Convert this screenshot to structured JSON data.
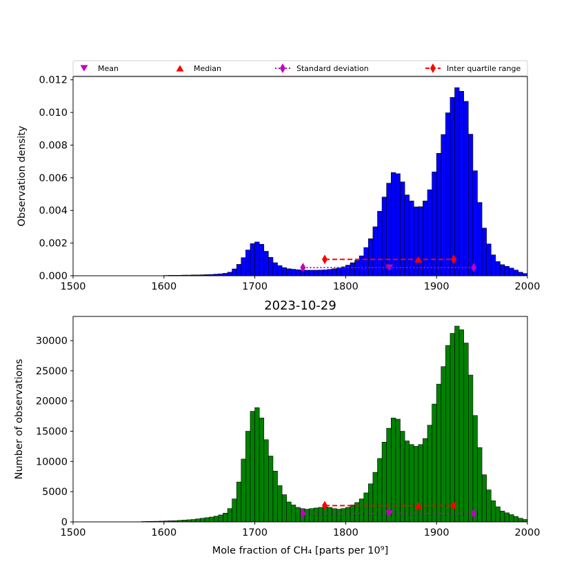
{
  "chart_data": [
    {
      "type": "bar",
      "ylabel": "Observation density",
      "xlim": [
        1500,
        2000
      ],
      "ylim": [
        0,
        0.0122
      ],
      "bin_width": 5,
      "xticks": [
        1500,
        1600,
        1700,
        1800,
        1900,
        2000
      ],
      "yticks": [
        0,
        0.002,
        0.004,
        0.006,
        0.008,
        0.01,
        0.012
      ],
      "ytick_labels": [
        "0.000",
        "0.002",
        "0.004",
        "0.006",
        "0.008",
        "0.010",
        "0.012"
      ],
      "bar_color": "#0000ff",
      "bin_starts": [
        1600,
        1605,
        1610,
        1615,
        1620,
        1625,
        1630,
        1635,
        1640,
        1645,
        1650,
        1655,
        1660,
        1665,
        1670,
        1675,
        1680,
        1685,
        1690,
        1695,
        1700,
        1705,
        1710,
        1715,
        1720,
        1725,
        1730,
        1735,
        1740,
        1745,
        1750,
        1755,
        1760,
        1765,
        1770,
        1775,
        1780,
        1785,
        1790,
        1795,
        1800,
        1805,
        1810,
        1815,
        1820,
        1825,
        1830,
        1835,
        1840,
        1845,
        1850,
        1855,
        1860,
        1865,
        1870,
        1875,
        1880,
        1885,
        1890,
        1895,
        1900,
        1905,
        1910,
        1915,
        1920,
        1925,
        1930,
        1935,
        1940,
        1945,
        1950,
        1955,
        1960,
        1965,
        1970,
        1975,
        1980,
        1985,
        1990,
        1995
      ],
      "values": [
        2e-05,
        3e-05,
        3e-05,
        3e-05,
        4e-05,
        4e-05,
        5e-05,
        5e-05,
        6e-05,
        7e-05,
        8e-05,
        0.0001,
        0.00012,
        0.00015,
        0.00022,
        0.00042,
        0.0007,
        0.00111,
        0.00158,
        0.00197,
        0.00207,
        0.00193,
        0.0015,
        0.00113,
        0.0008,
        0.00062,
        0.0005,
        0.00043,
        0.0004,
        0.00037,
        0.00034,
        0.00034,
        0.00034,
        0.00034,
        0.00035,
        0.00036,
        0.00039,
        0.00043,
        0.00048,
        0.00055,
        0.00065,
        0.0008,
        0.00094,
        0.00122,
        0.00173,
        0.00227,
        0.003,
        0.00395,
        0.00482,
        0.00567,
        0.00632,
        0.00625,
        0.00575,
        0.00495,
        0.00458,
        0.00422,
        0.00423,
        0.00458,
        0.00527,
        0.00636,
        0.0075,
        0.00865,
        0.00998,
        0.01092,
        0.01152,
        0.0113,
        0.01068,
        0.00867,
        0.00643,
        0.00449,
        0.00292,
        0.00195,
        0.00128,
        0.00087,
        0.00068,
        0.00058,
        0.00047,
        0.00035,
        0.00022,
        0.00014
      ],
      "markers": {
        "mean": {
          "x": 1848,
          "y": 0.0005
        },
        "median": {
          "x": 1880,
          "y": 0.001
        },
        "std": {
          "x": [
            1753,
            1941
          ],
          "y": 0.0005
        },
        "iqr": {
          "x": [
            1777,
            1919
          ],
          "y": 0.001
        }
      }
    },
    {
      "type": "bar",
      "title": "2023-10-29",
      "xlabel": "Mole fraction of CH₄ [parts per 10⁹]",
      "ylabel": "Number of observations",
      "xlim": [
        1500,
        2000
      ],
      "ylim": [
        0,
        34000
      ],
      "bin_width": 5,
      "xticks": [
        1500,
        1600,
        1700,
        1800,
        1900,
        2000
      ],
      "yticks": [
        0,
        5000,
        10000,
        15000,
        20000,
        25000,
        30000
      ],
      "ytick_labels": [
        "0",
        "5000",
        "10000",
        "15000",
        "20000",
        "25000",
        "30000"
      ],
      "bar_color": "#008000",
      "bin_starts": [
        1575,
        1580,
        1585,
        1590,
        1595,
        1600,
        1605,
        1610,
        1615,
        1620,
        1625,
        1630,
        1635,
        1640,
        1645,
        1650,
        1655,
        1660,
        1665,
        1670,
        1675,
        1680,
        1685,
        1690,
        1695,
        1700,
        1705,
        1710,
        1715,
        1720,
        1725,
        1730,
        1735,
        1740,
        1745,
        1750,
        1755,
        1760,
        1765,
        1770,
        1775,
        1780,
        1785,
        1790,
        1795,
        1800,
        1805,
        1810,
        1815,
        1820,
        1825,
        1830,
        1835,
        1840,
        1845,
        1850,
        1855,
        1860,
        1865,
        1870,
        1875,
        1880,
        1885,
        1890,
        1895,
        1900,
        1905,
        1910,
        1915,
        1920,
        1925,
        1930,
        1935,
        1940,
        1945,
        1950,
        1955,
        1960,
        1965,
        1970,
        1975,
        1980,
        1985,
        1990,
        1995
      ],
      "values": [
        60,
        80,
        90,
        100,
        120,
        150,
        180,
        200,
        250,
        300,
        350,
        400,
        500,
        600,
        700,
        800,
        950,
        1150,
        1450,
        2200,
        3800,
        6600,
        10400,
        15000,
        18300,
        18900,
        17200,
        13600,
        10900,
        8400,
        6000,
        4500,
        3300,
        2800,
        2400,
        2200,
        2100,
        2200,
        2300,
        2400,
        2500,
        2400,
        2200,
        2100,
        2200,
        2400,
        2800,
        3200,
        3800,
        4800,
        6300,
        8200,
        10500,
        13200,
        15500,
        17200,
        17000,
        15000,
        13400,
        12800,
        12500,
        12800,
        13800,
        16000,
        19500,
        22800,
        25700,
        29200,
        31200,
        32400,
        31800,
        29600,
        24300,
        17600,
        12300,
        7800,
        5300,
        3500,
        2500,
        1800,
        1500,
        1200,
        900,
        600,
        400
      ],
      "markers": {
        "mean": {
          "x": 1848,
          "y": 1400
        },
        "median": {
          "x": 1880,
          "y": 2700
        },
        "std": {
          "x": [
            1753,
            1941
          ],
          "y": 1400
        },
        "iqr": {
          "x": [
            1777,
            1919
          ],
          "y": 2700
        }
      }
    }
  ],
  "legend": {
    "placement": "top",
    "items": [
      {
        "key": "mean",
        "label": "Mean",
        "marker": "triangle-down",
        "color": "#bf00bf"
      },
      {
        "key": "median",
        "label": "Median",
        "marker": "triangle-up",
        "color": "#ff0000"
      },
      {
        "key": "std",
        "label": "Standard deviation",
        "marker": "diamond",
        "line": "dotted",
        "color": "#bf00bf"
      },
      {
        "key": "iqr",
        "label": "Inter quartile range",
        "marker": "diamond",
        "line": "dashed",
        "color": "#ff0000"
      }
    ]
  }
}
